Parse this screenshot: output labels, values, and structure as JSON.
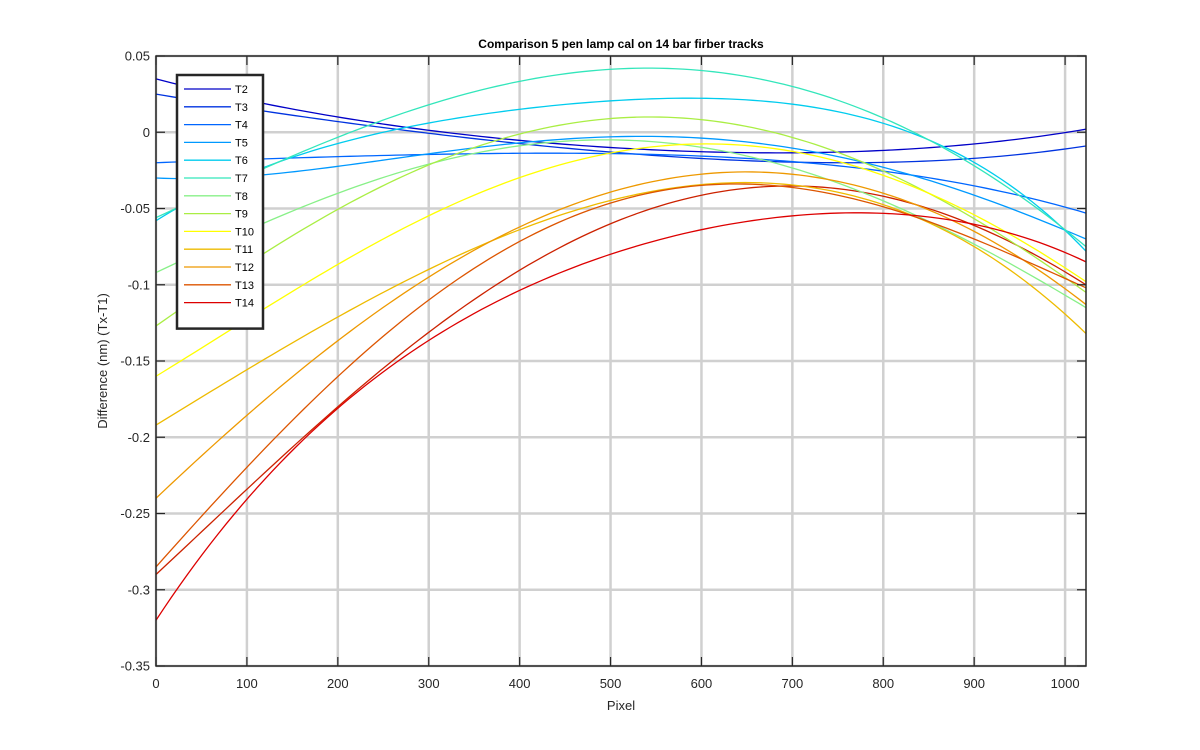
{
  "chart_data": {
    "type": "line",
    "title": "Comparison 5 pen lamp cal on 14 bar firber tracks",
    "xlabel": "Pixel",
    "ylabel": "Difference (nm) (Tx-T1)",
    "xlim": [
      0,
      1023
    ],
    "ylim": [
      -0.35,
      0.05
    ],
    "xticks": [
      0,
      100,
      200,
      300,
      400,
      500,
      600,
      700,
      800,
      900,
      1000
    ],
    "yticks": [
      -0.35,
      -0.3,
      -0.25,
      -0.2,
      -0.15,
      -0.1,
      -0.05,
      0,
      0.05
    ],
    "xtick_labels": [
      "0",
      "100",
      "200",
      "300",
      "400",
      "500",
      "600",
      "700",
      "800",
      "900",
      "1000"
    ],
    "ytick_labels": [
      "-0.35",
      "-0.3",
      "-0.25",
      "-0.2",
      "-0.15",
      "-0.1",
      "-0.05",
      "0",
      "0.05"
    ],
    "grid": true,
    "legend_position": "top-left",
    "series": [
      {
        "name": "T2",
        "color": "#0000c8",
        "x": [
          0,
          200,
          500,
          750,
          1023
        ],
        "y": [
          0.035,
          0.01,
          -0.01,
          -0.013,
          0.002
        ]
      },
      {
        "name": "T3",
        "color": "#0033e0",
        "x": [
          0,
          200,
          500,
          750,
          1023
        ],
        "y": [
          0.025,
          0.007,
          -0.013,
          -0.02,
          -0.009
        ]
      },
      {
        "name": "T4",
        "color": "#0066ff",
        "x": [
          0,
          200,
          500,
          750,
          1023
        ],
        "y": [
          -0.02,
          -0.016,
          -0.014,
          -0.022,
          -0.053
        ]
      },
      {
        "name": "T5",
        "color": "#0099ff",
        "x": [
          0,
          150,
          500,
          800,
          1023
        ],
        "y": [
          -0.03,
          -0.026,
          -0.003,
          -0.023,
          -0.07
        ]
      },
      {
        "name": "T6",
        "color": "#00ccee",
        "x": [
          0,
          250,
          550,
          850,
          1023
        ],
        "y": [
          -0.058,
          0.0,
          0.022,
          -0.005,
          -0.078
        ]
      },
      {
        "name": "T7",
        "color": "#33e6bb",
        "x": [
          0,
          250,
          530,
          850,
          1023
        ],
        "y": [
          -0.056,
          0.008,
          0.042,
          -0.005,
          -0.075
        ]
      },
      {
        "name": "T8",
        "color": "#88f088",
        "x": [
          0,
          200,
          500,
          800,
          1023
        ],
        "y": [
          -0.092,
          -0.04,
          -0.005,
          -0.045,
          -0.115
        ]
      },
      {
        "name": "T9",
        "color": "#aaee44",
        "x": [
          0,
          250,
          550,
          850,
          1023
        ],
        "y": [
          -0.127,
          -0.035,
          0.01,
          -0.04,
          -0.105
        ]
      },
      {
        "name": "T10",
        "color": "#ffff00",
        "x": [
          0,
          250,
          580,
          850,
          1023
        ],
        "y": [
          -0.16,
          -0.07,
          -0.008,
          -0.04,
          -0.098
        ]
      },
      {
        "name": "T11",
        "color": "#eebb00",
        "x": [
          0,
          250,
          650,
          900,
          1023
        ],
        "y": [
          -0.192,
          -0.105,
          -0.033,
          -0.075,
          -0.132
        ]
      },
      {
        "name": "T12",
        "color": "#ee9900",
        "x": [
          0,
          300,
          650,
          900,
          1023
        ],
        "y": [
          -0.24,
          -0.095,
          -0.026,
          -0.065,
          -0.113
        ]
      },
      {
        "name": "T13",
        "color": "#dd5500",
        "x": [
          0,
          300,
          650,
          900,
          1023
        ],
        "y": [
          -0.285,
          -0.11,
          -0.034,
          -0.07,
          -0.102
        ]
      },
      {
        "name": "T14",
        "color": "#dd0000",
        "x": [
          0,
          200,
          500,
          750,
          1023
        ],
        "y": [
          -0.32,
          -0.181,
          -0.08,
          -0.053,
          -0.085
        ]
      }
    ],
    "extra_curve": {
      "color": "#cc2200",
      "x": [
        0,
        200,
        500,
        750,
        1023
      ],
      "y": [
        -0.29,
        -0.18,
        -0.06,
        -0.037,
        -0.1
      ]
    }
  }
}
